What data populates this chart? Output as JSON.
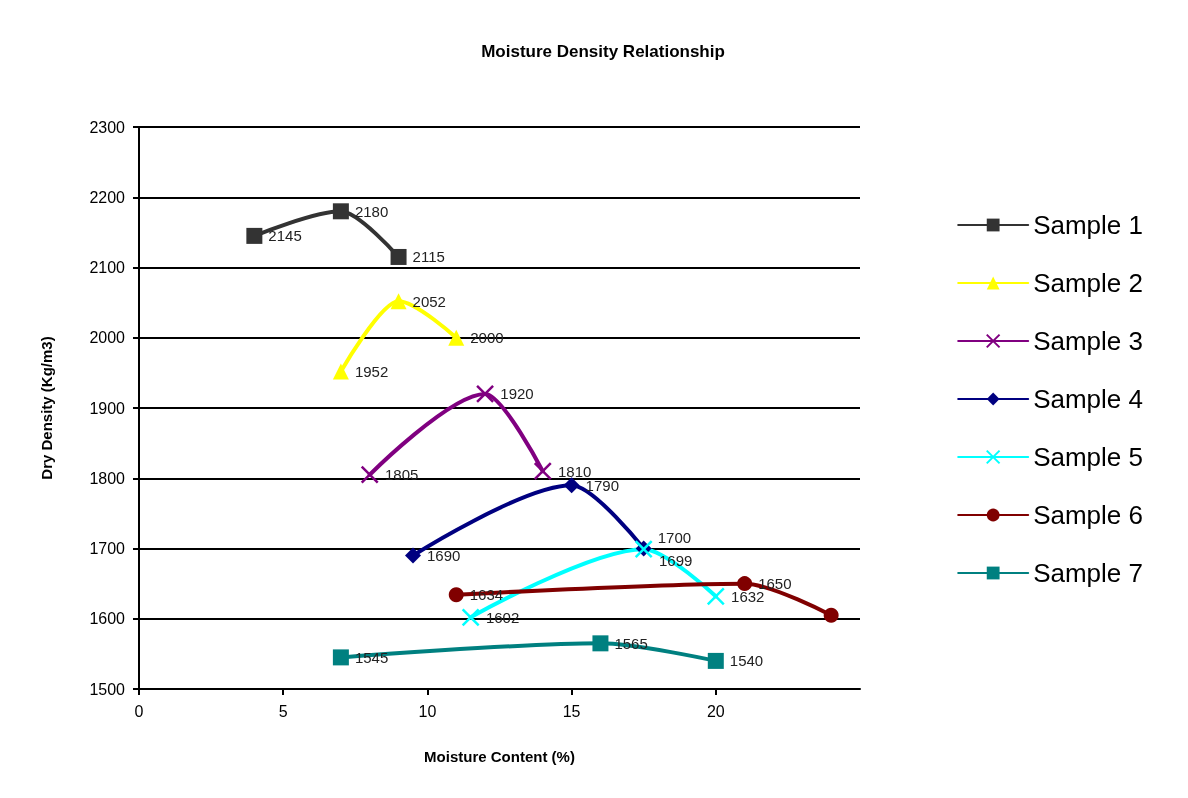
{
  "chart_data": {
    "type": "line",
    "title": "Moisture Density Relationship",
    "xlabel": "Moisture Content (%)",
    "ylabel": "Dry Density (Kg/m3)",
    "xlim": [
      0,
      25
    ],
    "xticks": [
      0,
      5,
      10,
      15,
      20
    ],
    "ylim": [
      1500,
      2300
    ],
    "yticks": [
      1500,
      1600,
      1700,
      1800,
      1900,
      2000,
      2100,
      2200,
      2300
    ],
    "grid": "y",
    "legend": "right",
    "line_style": "solid",
    "series": [
      {
        "name": "Sample 1",
        "color": "#333333",
        "marker": "square",
        "x": [
          4,
          7,
          9
        ],
        "values": [
          2145,
          2180,
          2115
        ],
        "value_labels": [
          "2145",
          "2180",
          "2115"
        ]
      },
      {
        "name": "Sample 2",
        "color": "#ffff00",
        "marker": "triangle",
        "x": [
          7,
          9,
          11
        ],
        "values": [
          1952,
          2052,
          2000
        ],
        "value_labels": [
          "1952",
          "2052",
          "2000"
        ]
      },
      {
        "name": "Sample 3",
        "color": "#800080",
        "marker": "cross",
        "x": [
          8,
          12,
          14
        ],
        "values": [
          1805,
          1920,
          1810
        ],
        "value_labels": [
          "1805",
          "1920",
          "1810"
        ]
      },
      {
        "name": "Sample 4",
        "color": "#000080",
        "marker": "diamond",
        "x": [
          9.5,
          15,
          17.5
        ],
        "values": [
          1690,
          1790,
          1700
        ],
        "value_labels": [
          "1690",
          "1790",
          "1700"
        ]
      },
      {
        "name": "Sample 5",
        "color": "#00ffff",
        "marker": "cross",
        "x": [
          11.5,
          17.5,
          20
        ],
        "values": [
          1602,
          1699,
          1632
        ],
        "value_labels": [
          "1602",
          "1699",
          "1632"
        ]
      },
      {
        "name": "Sample 6",
        "color": "#800000",
        "marker": "circle",
        "x": [
          11,
          21,
          24
        ],
        "values": [
          1634,
          1650,
          1605
        ],
        "value_labels": [
          "1634",
          "1650",
          null
        ]
      },
      {
        "name": "Sample 7",
        "color": "#008080",
        "marker": "square",
        "x": [
          7,
          16,
          20
        ],
        "values": [
          1545,
          1565,
          1540
        ],
        "value_labels": [
          "1545",
          "1565",
          "1540"
        ]
      }
    ]
  }
}
